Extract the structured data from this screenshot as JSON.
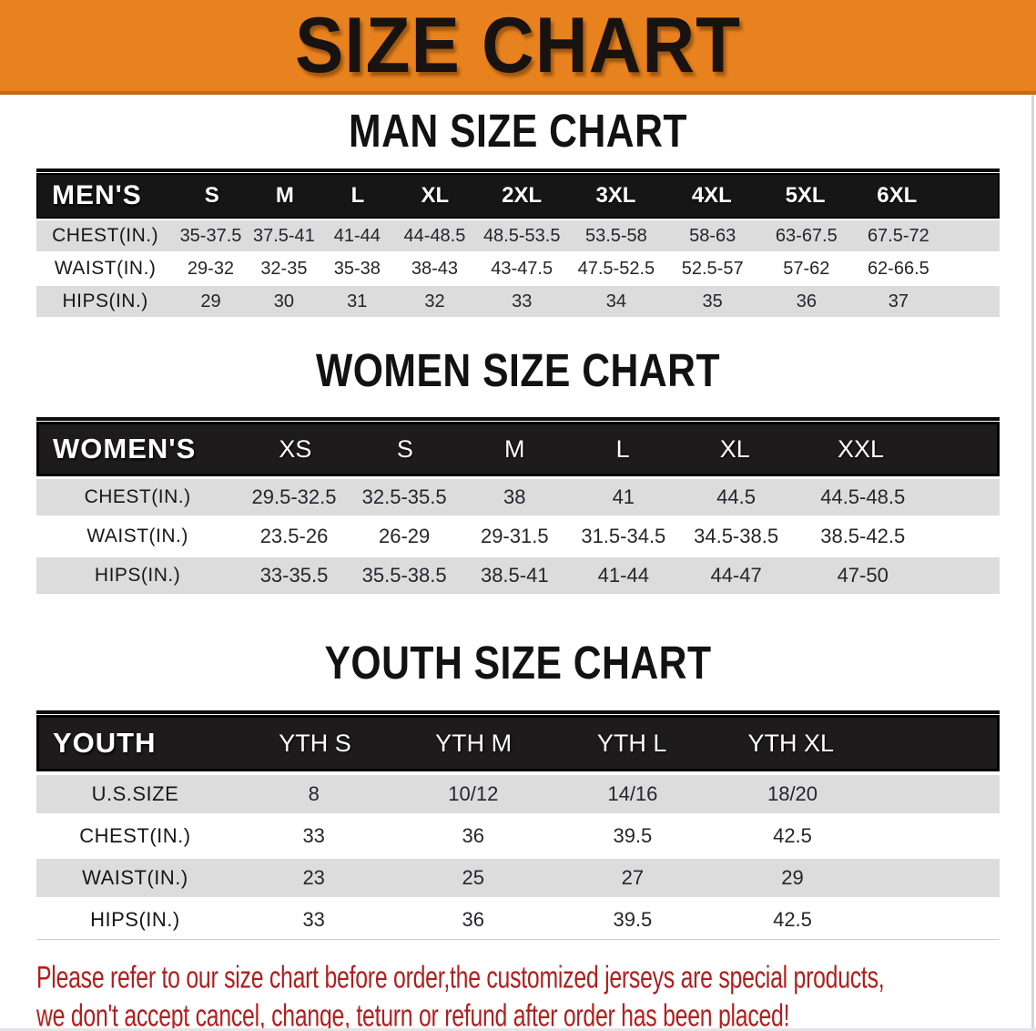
{
  "banner": {
    "title": "SIZE CHART"
  },
  "sections": [
    {
      "id": "men",
      "heading": "MAN SIZE CHART",
      "table": {
        "corner_label": "MEN'S",
        "columns": [
          "S",
          "M",
          "L",
          "XL",
          "2XL",
          "3XL",
          "4XL",
          "5XL",
          "6XL"
        ],
        "rows": [
          {
            "label": "CHEST(IN.)",
            "values": [
              "35-37.5",
              "37.5-41",
              "41-44",
              "44-48.5",
              "48.5-53.5",
              "53.5-58",
              "58-63",
              "63-67.5",
              "67.5-72"
            ]
          },
          {
            "label": "WAIST(IN.)",
            "values": [
              "29-32",
              "32-35",
              "35-38",
              "38-43",
              "43-47.5",
              "47.5-52.5",
              "52.5-57",
              "57-62",
              "62-66.5"
            ]
          },
          {
            "label": "HIPS(IN.)",
            "values": [
              "29",
              "30",
              "31",
              "32",
              "33",
              "34",
              "35",
              "36",
              "37"
            ]
          }
        ]
      }
    },
    {
      "id": "women",
      "heading": "WOMEN SIZE CHART",
      "table": {
        "corner_label": "WOMEN'S",
        "columns": [
          "XS",
          "S",
          "M",
          "L",
          "XL",
          "XXL"
        ],
        "rows": [
          {
            "label": "CHEST(IN.)",
            "values": [
              "29.5-32.5",
              "32.5-35.5",
              "38",
              "41",
              "44.5",
              "44.5-48.5"
            ]
          },
          {
            "label": "WAIST(IN.)",
            "values": [
              "23.5-26",
              "26-29",
              "29-31.5",
              "31.5-34.5",
              "34.5-38.5",
              "38.5-42.5"
            ]
          },
          {
            "label": "HIPS(IN.)",
            "values": [
              "33-35.5",
              "35.5-38.5",
              "38.5-41",
              "41-44",
              "44-47",
              "47-50"
            ]
          }
        ]
      }
    },
    {
      "id": "youth",
      "heading": "YOUTH SIZE CHART",
      "table": {
        "corner_label": "YOUTH",
        "columns": [
          "YTH S",
          "YTH M",
          "YTH L",
          "YTH XL"
        ],
        "rows": [
          {
            "label": "U.S.SIZE",
            "values": [
              "8",
              "10/12",
              "14/16",
              "18/20"
            ]
          },
          {
            "label": "CHEST(IN.)",
            "values": [
              "33",
              "36",
              "39.5",
              "42.5"
            ]
          },
          {
            "label": "WAIST(IN.)",
            "values": [
              "23",
              "25",
              "27",
              "29"
            ]
          },
          {
            "label": "HIPS(IN.)",
            "values": [
              "33",
              "36",
              "39.5",
              "42.5"
            ]
          }
        ]
      }
    }
  ],
  "notice": {
    "lines": [
      "Please refer to our size chart before order,the customized jerseys are special products,",
      "we don't accept cancel, change, teturn or refund after order has been placed!"
    ]
  },
  "colors": {
    "banner_bg": "#E8821E",
    "banner_border": "#C66A0F",
    "header_band": "#161616",
    "stripe": "#DCDCDC",
    "notice_text": "#B11E1E"
  }
}
